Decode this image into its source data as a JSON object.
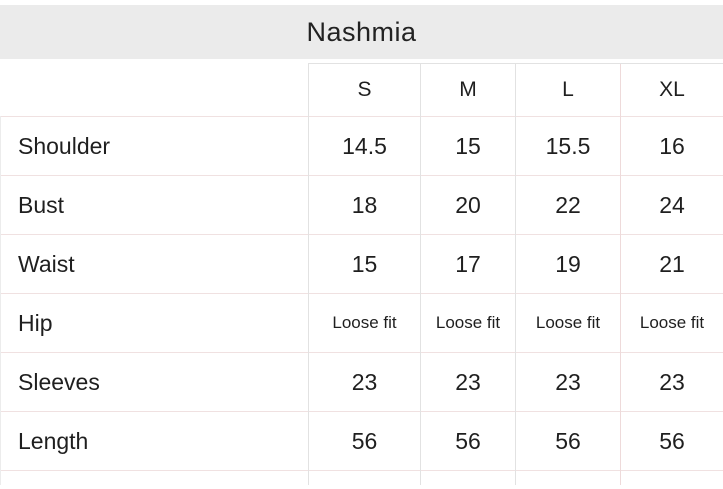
{
  "brand": {
    "title": "Nashmia"
  },
  "table": {
    "size_headers": [
      "S",
      "M",
      "L",
      "XL"
    ],
    "rows": [
      {
        "label": "Shoulder",
        "values": [
          "14.5",
          "15",
          "15.5",
          "16"
        ]
      },
      {
        "label": "Bust",
        "values": [
          "18",
          "20",
          "22",
          "24"
        ]
      },
      {
        "label": "Waist",
        "values": [
          "15",
          "17",
          "19",
          "21"
        ]
      },
      {
        "label": "Hip",
        "values": [
          "Loose fit",
          "Loose fit",
          "Loose fit",
          "Loose fit"
        ]
      },
      {
        "label": "Sleeves",
        "values": [
          "23",
          "23",
          "23",
          "23"
        ]
      },
      {
        "label": "Length",
        "values": [
          "56",
          "56",
          "56",
          "56"
        ]
      }
    ]
  },
  "colors": {
    "band_bg": "#ebebeb",
    "border_v": "#e2e2e2",
    "border_v_pink": "#eedada",
    "border_h": "#f0e1e1",
    "text_color": "#1f1f1f"
  }
}
